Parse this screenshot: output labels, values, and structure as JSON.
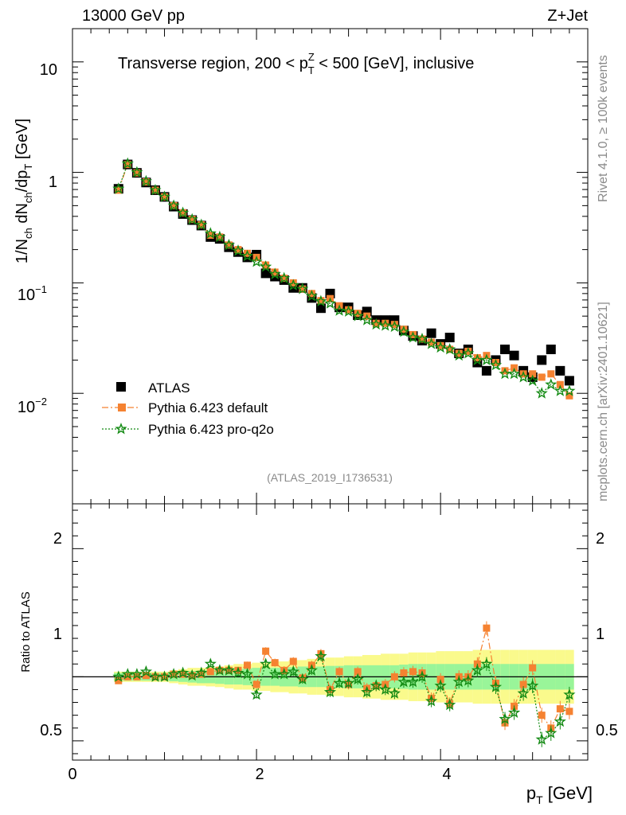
{
  "header": {
    "left": "13000 GeV pp",
    "right": "Z+Jet",
    "plot_title": "Transverse region, 200 < p",
    "title_sup": "Z",
    "title_sub": "T",
    "title_rest": " < 500 [GeV], inclusive",
    "analysis_tag": "(ATLAS_2019_I1736531)",
    "side_rivet": "Rivet 4.1.0, ≥ 100k events",
    "side_mcplots": "mcplots.cern.ch [arXiv:2401.10621]"
  },
  "axes": {
    "ylabel_main": "1/N",
    "ylabel_main_parts": [
      "1/N",
      "ch",
      " dN",
      "ch",
      "/dp",
      "T",
      " [GeV]"
    ],
    "ylabel_ratio": "Ratio to ATLAS",
    "xlabel": "p",
    "xlabel_sub": "T",
    "xlabel_unit": " [GeV]",
    "x_ticks": [
      "0",
      "2",
      "4"
    ],
    "y_main_ticks": [
      "10",
      "1",
      "10",
      "10"
    ],
    "y_main_exps": [
      "",
      "",
      "−1",
      "−2"
    ],
    "y_ratio_ticks": [
      "2",
      "1",
      "0.5"
    ]
  },
  "legend": {
    "atlas": "ATLAS",
    "default": "Pythia 6.423 default",
    "proq2o": "Pythia 6.423 pro-q2o"
  },
  "colors": {
    "atlas": "#000000",
    "default": "#f58231",
    "proq2o": "#138a13",
    "band_inner": "#99f599",
    "band_outer": "#fafa8c"
  },
  "chart_data": {
    "type": "scatter",
    "title": "Transverse region, 200 < pT(Z) < 500 [GeV], inclusive",
    "xlabel": "pT [GeV]",
    "ylabel": "1/Nch dNch/dpT [GeV]",
    "xlim": [
      0,
      5.6
    ],
    "ylim_main": [
      0.001,
      20
    ],
    "ylim_ratio": [
      0.35,
      2.35
    ],
    "yscale_main": "log",
    "x": [
      0.5,
      0.6,
      0.7,
      0.8,
      0.9,
      1.0,
      1.1,
      1.2,
      1.3,
      1.4,
      1.5,
      1.6,
      1.7,
      1.8,
      1.9,
      2.0,
      2.1,
      2.2,
      2.3,
      2.4,
      2.5,
      2.6,
      2.7,
      2.8,
      2.9,
      3.0,
      3.1,
      3.2,
      3.3,
      3.4,
      3.5,
      3.6,
      3.7,
      3.8,
      3.9,
      4.0,
      4.1,
      4.2,
      4.3,
      4.4,
      4.5,
      4.6,
      4.7,
      4.8,
      4.9,
      5.0,
      5.1,
      5.2,
      5.3,
      5.4
    ],
    "series": [
      {
        "name": "ATLAS",
        "values": [
          0.71,
          1.18,
          0.99,
          0.81,
          0.69,
          0.6,
          0.49,
          0.42,
          0.37,
          0.33,
          0.26,
          0.25,
          0.21,
          0.19,
          0.17,
          0.18,
          0.122,
          0.114,
          0.106,
          0.09,
          0.09,
          0.073,
          0.059,
          0.08,
          0.06,
          0.06,
          0.051,
          0.055,
          0.046,
          0.046,
          0.046,
          0.037,
          0.033,
          0.03,
          0.035,
          0.028,
          0.032,
          0.023,
          0.025,
          0.019,
          0.016,
          0.02,
          0.025,
          0.022,
          0.016,
          0.014,
          0.02,
          0.025,
          0.016,
          0.013
        ]
      },
      {
        "name": "Pythia 6.423 default",
        "values": [
          0.69,
          1.18,
          0.99,
          0.82,
          0.69,
          0.6,
          0.5,
          0.43,
          0.375,
          0.335,
          0.27,
          0.26,
          0.22,
          0.2,
          0.185,
          0.17,
          0.145,
          0.125,
          0.11,
          0.1,
          0.088,
          0.08,
          0.069,
          0.072,
          0.062,
          0.057,
          0.053,
          0.05,
          0.043,
          0.043,
          0.042,
          0.038,
          0.034,
          0.031,
          0.029,
          0.027,
          0.025,
          0.023,
          0.024,
          0.021,
          0.022,
          0.019,
          0.016,
          0.017,
          0.015,
          0.015,
          0.014,
          0.015,
          0.012,
          0.0095
        ],
        "ratio": [
          0.97,
          1.0,
          1.0,
          1.01,
          1.0,
          1.0,
          1.02,
          1.02,
          1.01,
          1.02,
          1.04,
          1.05,
          1.05,
          1.05,
          1.09,
          0.94,
          1.2,
          1.11,
          1.05,
          1.12,
          0.99,
          1.09,
          1.18,
          0.9,
          1.04,
          0.94,
          1.04,
          0.91,
          0.93,
          0.94,
          1.0,
          1.03,
          1.04,
          1.03,
          0.83,
          0.98,
          0.79,
          1.0,
          1.0,
          1.1,
          1.38,
          0.95,
          0.64,
          0.77,
          0.94,
          1.07,
          0.7,
          0.6,
          0.75,
          0.73
        ]
      },
      {
        "name": "Pythia 6.423 pro-q2o",
        "values": [
          0.71,
          1.2,
          1.0,
          0.83,
          0.69,
          0.6,
          0.5,
          0.43,
          0.375,
          0.335,
          0.28,
          0.26,
          0.22,
          0.195,
          0.175,
          0.155,
          0.14,
          0.12,
          0.11,
          0.095,
          0.088,
          0.076,
          0.068,
          0.065,
          0.056,
          0.055,
          0.05,
          0.046,
          0.042,
          0.041,
          0.04,
          0.036,
          0.032,
          0.031,
          0.028,
          0.026,
          0.025,
          0.022,
          0.023,
          0.02,
          0.02,
          0.018,
          0.015,
          0.015,
          0.014,
          0.013,
          0.01,
          0.012,
          0.0105,
          0.0105
        ],
        "ratio": [
          1.0,
          1.02,
          1.02,
          1.04,
          1.0,
          1.0,
          1.02,
          1.03,
          1.01,
          1.03,
          1.1,
          1.05,
          1.05,
          1.03,
          1.02,
          0.86,
          1.1,
          1.02,
          1.02,
          1.04,
          0.98,
          1.05,
          1.16,
          0.88,
          0.95,
          0.95,
          0.98,
          0.88,
          0.93,
          0.9,
          0.87,
          0.96,
          0.96,
          1.0,
          0.81,
          0.93,
          0.78,
          0.96,
          0.97,
          1.05,
          1.1,
          0.92,
          0.67,
          0.72,
          0.87,
          0.93,
          0.51,
          0.56,
          0.65,
          0.86
        ]
      }
    ],
    "band_inner_halfwidth": [
      0.03,
      0.03,
      0.03,
      0.03,
      0.03,
      0.03,
      0.035,
      0.04,
      0.045,
      0.05,
      0.05,
      0.055,
      0.06,
      0.06,
      0.065,
      0.07,
      0.07,
      0.07,
      0.075,
      0.075,
      0.08,
      0.08,
      0.08,
      0.085,
      0.085,
      0.09,
      0.09,
      0.09,
      0.09,
      0.09,
      0.09,
      0.095,
      0.1,
      0.1,
      0.1,
      0.1,
      0.1,
      0.1,
      0.1,
      0.1,
      0.1,
      0.1,
      0.1,
      0.1,
      0.1,
      0.1,
      0.1,
      0.1,
      0.1,
      0.1
    ],
    "band_outer_halfwidth": [
      0.04,
      0.04,
      0.04,
      0.04,
      0.04,
      0.04,
      0.05,
      0.06,
      0.07,
      0.07,
      0.075,
      0.08,
      0.09,
      0.1,
      0.1,
      0.11,
      0.11,
      0.12,
      0.12,
      0.13,
      0.13,
      0.14,
      0.14,
      0.15,
      0.15,
      0.16,
      0.16,
      0.17,
      0.17,
      0.18,
      0.18,
      0.18,
      0.19,
      0.19,
      0.19,
      0.2,
      0.2,
      0.2,
      0.2,
      0.21,
      0.21,
      0.21,
      0.21,
      0.21,
      0.21,
      0.21,
      0.21,
      0.21,
      0.21,
      0.21
    ]
  }
}
